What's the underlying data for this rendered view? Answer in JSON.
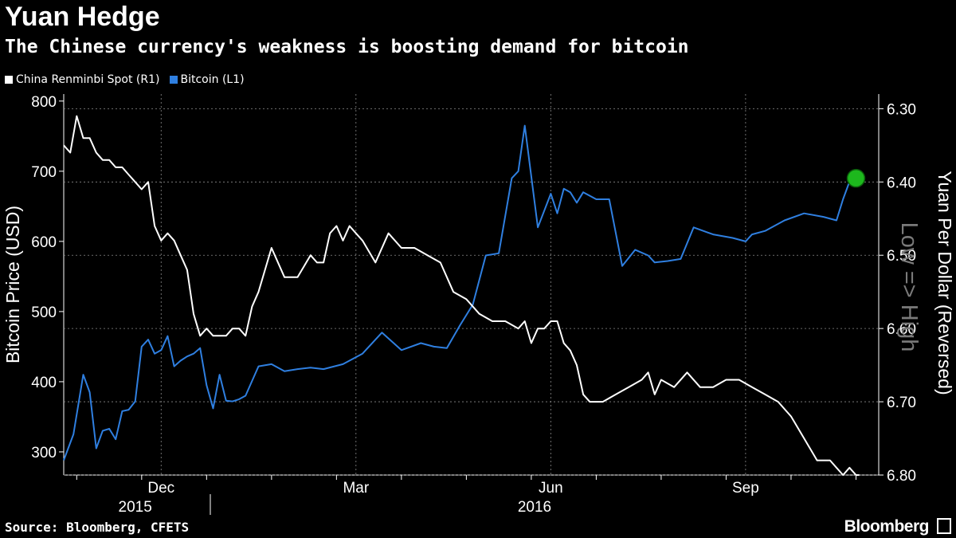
{
  "title": "Yuan Hedge",
  "subtitle": "The Chinese currency's weakness is boosting demand for bitcoin",
  "source": "Source: Bloomberg, CFETS",
  "brand": "Bloomberg",
  "colors": {
    "background": "#000000",
    "cny": "#ffffff",
    "btc": "#2f7fe0",
    "marker": "#1db81d"
  },
  "chart_data": {
    "type": "line",
    "title": "Yuan Hedge",
    "subtitle": "The Chinese currency's weakness is boosting demand for bitcoin",
    "legend": [
      {
        "name": "China Renminbi Spot (R1)",
        "color": "#ffffff"
      },
      {
        "name": "Bitcoin (L1)",
        "color": "#2f7fe0"
      }
    ],
    "ylabel_left": "Bitcoin Price (USD)",
    "ylabel_right": "Yuan Per Dollar (Reversed)",
    "right_axis_note": "Low => High",
    "x_range": [
      0,
      12.55
    ],
    "x_ticks": [
      {
        "label": "Dec",
        "x": 1.5
      },
      {
        "label": "Mar",
        "x": 4.5
      },
      {
        "label": "Jun",
        "x": 7.5
      },
      {
        "label": "Sep",
        "x": 10.5
      }
    ],
    "year_labels": [
      {
        "label": "2015",
        "x": 1.1
      },
      {
        "label": "2016",
        "x": 7.25
      }
    ],
    "y_left": {
      "range": [
        267,
        810
      ],
      "ticks": [
        300,
        400,
        500,
        600,
        700,
        800
      ]
    },
    "y_right": {
      "range": [
        6.8,
        6.28
      ],
      "reversed": true,
      "ticks": [
        6.3,
        6.4,
        6.5,
        6.6,
        6.7,
        6.8
      ]
    },
    "series": [
      {
        "name": "Bitcoin (L1)",
        "axis": "left",
        "color": "#2f7fe0",
        "x": [
          0,
          0.15,
          0.3,
          0.4,
          0.5,
          0.6,
          0.7,
          0.8,
          0.9,
          1.0,
          1.1,
          1.2,
          1.3,
          1.4,
          1.5,
          1.6,
          1.7,
          1.8,
          1.9,
          2.0,
          2.1,
          2.2,
          2.3,
          2.4,
          2.5,
          2.6,
          2.7,
          2.8,
          3.0,
          3.2,
          3.4,
          3.6,
          3.8,
          4.0,
          4.3,
          4.6,
          4.9,
          5.2,
          5.5,
          5.7,
          5.9,
          6.1,
          6.3,
          6.5,
          6.7,
          6.9,
          7.0,
          7.1,
          7.3,
          7.5,
          7.6,
          7.7,
          7.8,
          7.9,
          8.0,
          8.1,
          8.2,
          8.4,
          8.6,
          8.8,
          9.0,
          9.1,
          9.3,
          9.5,
          9.7,
          10.0,
          10.3,
          10.5,
          10.6,
          10.8,
          11.1,
          11.4,
          11.7,
          11.9,
          12.0,
          12.1,
          12.2,
          12.25
        ],
        "values": [
          288,
          325,
          410,
          385,
          305,
          330,
          333,
          318,
          358,
          360,
          372,
          450,
          460,
          440,
          445,
          465,
          422,
          430,
          436,
          440,
          448,
          395,
          362,
          410,
          373,
          372,
          375,
          380,
          422,
          425,
          415,
          418,
          420,
          418,
          425,
          440,
          470,
          445,
          455,
          450,
          448,
          480,
          510,
          580,
          583,
          690,
          700,
          765,
          620,
          668,
          640,
          675,
          670,
          655,
          670,
          665,
          660,
          660,
          565,
          588,
          580,
          570,
          572,
          575,
          620,
          610,
          605,
          600,
          610,
          615,
          630,
          640,
          635,
          630,
          660,
          685,
          690,
          690
        ]
      },
      {
        "name": "China Renminbi Spot (R1)",
        "axis": "right",
        "color": "#ffffff",
        "x": [
          0,
          0.1,
          0.2,
          0.3,
          0.4,
          0.5,
          0.6,
          0.7,
          0.8,
          0.9,
          1.0,
          1.1,
          1.2,
          1.3,
          1.4,
          1.5,
          1.6,
          1.7,
          1.8,
          1.9,
          2.0,
          2.1,
          2.2,
          2.3,
          2.4,
          2.5,
          2.6,
          2.7,
          2.8,
          2.9,
          3.0,
          3.2,
          3.4,
          3.6,
          3.8,
          3.9,
          4.0,
          4.1,
          4.2,
          4.3,
          4.4,
          4.5,
          4.6,
          4.8,
          5.0,
          5.2,
          5.4,
          5.6,
          5.8,
          6.0,
          6.2,
          6.4,
          6.6,
          6.8,
          7.0,
          7.1,
          7.2,
          7.3,
          7.4,
          7.5,
          7.6,
          7.7,
          7.8,
          7.9,
          8.0,
          8.1,
          8.3,
          8.5,
          8.7,
          8.9,
          9.0,
          9.1,
          9.2,
          9.4,
          9.6,
          9.8,
          10.0,
          10.2,
          10.4,
          10.6,
          10.8,
          11.0,
          11.2,
          11.4,
          11.6,
          11.8,
          11.9,
          12.0,
          12.1,
          12.2,
          12.25
        ],
        "values": [
          6.35,
          6.36,
          6.31,
          6.34,
          6.34,
          6.36,
          6.37,
          6.37,
          6.38,
          6.38,
          6.39,
          6.4,
          6.41,
          6.4,
          6.46,
          6.48,
          6.47,
          6.48,
          6.5,
          6.52,
          6.58,
          6.61,
          6.6,
          6.61,
          6.61,
          6.61,
          6.6,
          6.6,
          6.61,
          6.57,
          6.55,
          6.49,
          6.53,
          6.53,
          6.5,
          6.51,
          6.51,
          6.47,
          6.46,
          6.48,
          6.46,
          6.47,
          6.48,
          6.51,
          6.47,
          6.49,
          6.49,
          6.5,
          6.51,
          6.55,
          6.56,
          6.58,
          6.59,
          6.59,
          6.6,
          6.59,
          6.62,
          6.6,
          6.6,
          6.59,
          6.59,
          6.62,
          6.63,
          6.65,
          6.69,
          6.7,
          6.7,
          6.69,
          6.68,
          6.67,
          6.66,
          6.69,
          6.67,
          6.68,
          6.66,
          6.68,
          6.68,
          6.67,
          6.67,
          6.68,
          6.69,
          6.7,
          6.72,
          6.75,
          6.78,
          6.78,
          6.79,
          6.8,
          6.79,
          6.8,
          6.8
        ]
      }
    ],
    "highlight": {
      "series": "Bitcoin (L1)",
      "x": 12.2,
      "value": 690
    }
  }
}
